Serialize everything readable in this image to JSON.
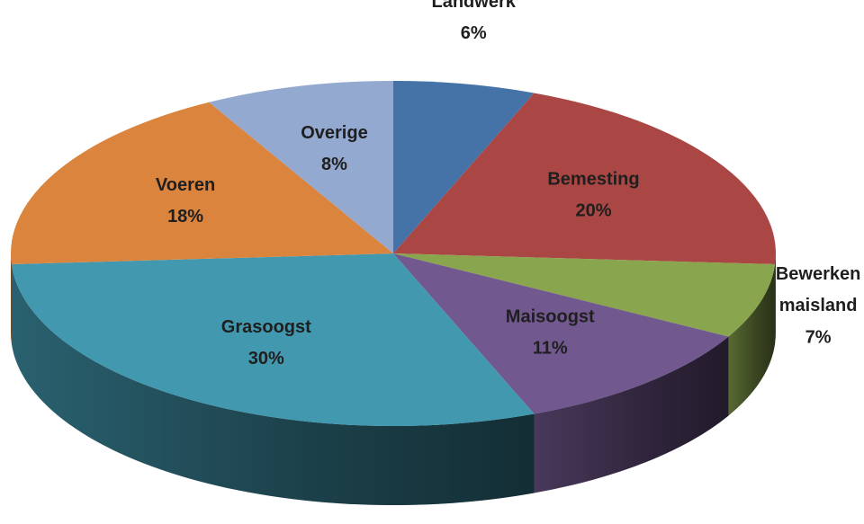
{
  "chart_data": {
    "type": "pie",
    "categories": [
      "Landwerk",
      "Bemesting",
      "Bewerken maisland",
      "Maisoogst",
      "Grasoogst",
      "Voeren",
      "Overige"
    ],
    "values": [
      6,
      20,
      7,
      11,
      30,
      18,
      8
    ],
    "value_labels": [
      "6%",
      "20%",
      "7%",
      "11%",
      "30%",
      "18%",
      "8%"
    ],
    "colors": [
      "#4572a7",
      "#aa4643",
      "#89a54e",
      "#71588f",
      "#4198af",
      "#db843d",
      "#93a9cf"
    ]
  }
}
